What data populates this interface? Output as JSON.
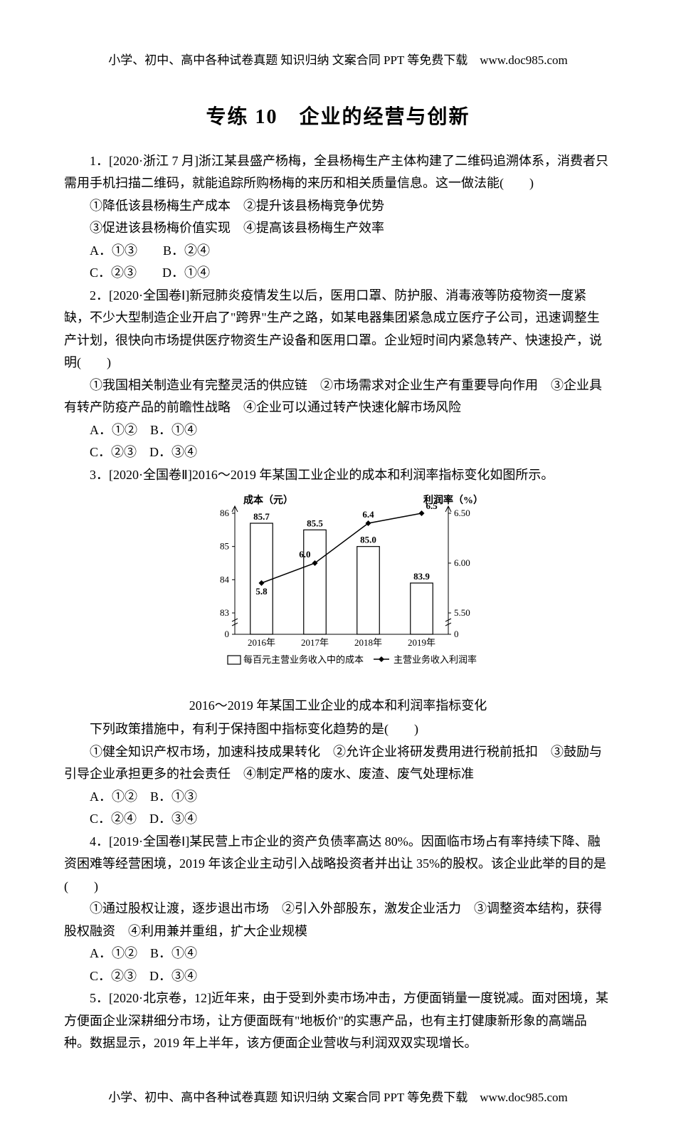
{
  "header": "小学、初中、高中各种试卷真题 知识归纳 文案合同 PPT 等免费下载　www.doc985.com",
  "footer": "小学、初中、高中各种试卷真题 知识归纳 文案合同 PPT 等免费下载　www.doc985.com",
  "title": "专练 10　企业的经营与创新",
  "q1": {
    "stem1": "1．[2020·浙江 7 月]浙江某县盛产杨梅，全县杨梅生产主体构建了二维码追溯体系，消费者只需用手机扫描二维码，就能追踪所购杨梅的来历和相关质量信息。这一做法能(　　)",
    "line1": "①降低该县杨梅生产成本　②提升该县杨梅竞争优势",
    "line2": "③促进该县杨梅价值实现　④提高该县杨梅生产效率",
    "optA": "A．①③　　B．②④",
    "optC": "C．②③　　D．①④"
  },
  "q2": {
    "stem": "2．[2020·全国卷Ⅰ]新冠肺炎疫情发生以后，医用口罩、防护服、消毒液等防疫物资一度紧缺，不少大型制造企业开启了\"跨界\"生产之路，如某电器集团紧急成立医疗子公司，迅速调整生产计划，很快向市场提供医疗物资生产设备和医用口罩。企业短时间内紧急转产、快速投产，说明(　　)",
    "line1": "①我国相关制造业有完整灵活的供应链　②市场需求对企业生产有重要导向作用　③企业具有转产防疫产品的前瞻性战略　④企业可以通过转产快速化解市场风险",
    "optA": "A．①②　B．①④",
    "optC": "C．②③　D．③④"
  },
  "q3": {
    "stem": "3．[2020·全国卷Ⅱ]2016～2019 年某国工业企业的成本和利润率指标变化如图所示。",
    "caption": "2016～2019 年某国工业企业的成本和利润率指标变化",
    "follow": "下列政策措施中，有利于保持图中指标变化趋势的是(　　)",
    "line1": "①健全知识产权市场，加速科技成果转化　②允许企业将研发费用进行税前抵扣　③鼓励与引导企业承担更多的社会责任　④制定严格的废水、废渣、废气处理标准",
    "optA": "A．①②　B．①③",
    "optC": "C．②④　D．③④"
  },
  "q4": {
    "stem": "4．[2019·全国卷Ⅰ]某民营上市企业的资产负债率高达 80%。因面临市场占有率持续下降、融资困难等经营困境，2019 年该企业主动引入战略投资者并出让 35%的股权。该企业此举的目的是(　　)",
    "line1": "①通过股权让渡，逐步退出市场　②引入外部股东，激发企业活力　③调整资本结构，获得股权融资　④利用兼并重组，扩大企业规模",
    "optA": "A．①②　B．①④",
    "optC": "C．②③　D．③④"
  },
  "q5": {
    "stem": "5．[2020·北京卷，12]近年来，由于受到外卖市场冲击，方便面销量一度锐减。面对困境，某方便面企业深耕细分市场，让方便面既有\"地板价\"的实惠产品，也有主打健康新形象的高端品种。数据显示，2019 年上半年，该方便面企业营收与利润双双实现增长。"
  },
  "chart": {
    "left_title": "成本（元）",
    "right_title": "利润率（%）",
    "categories": [
      "2016年",
      "2017年",
      "2018年",
      "2019年"
    ],
    "bar_values": [
      85.7,
      85.5,
      85.0,
      83.9
    ],
    "line_values": [
      5.8,
      6.0,
      6.4,
      6.5
    ],
    "left_ticks": [
      0,
      83,
      84,
      85,
      86
    ],
    "right_ticks": [
      0,
      5.5,
      6.0,
      6.5
    ],
    "legend_bar": "每百元主营业务收入中的成本",
    "legend_line": "主营业务收入利润率",
    "bar_color": "#ffffff",
    "bar_stroke": "#000000",
    "line_color": "#000000",
    "axis_color": "#000000",
    "text_color": "#000000"
  }
}
